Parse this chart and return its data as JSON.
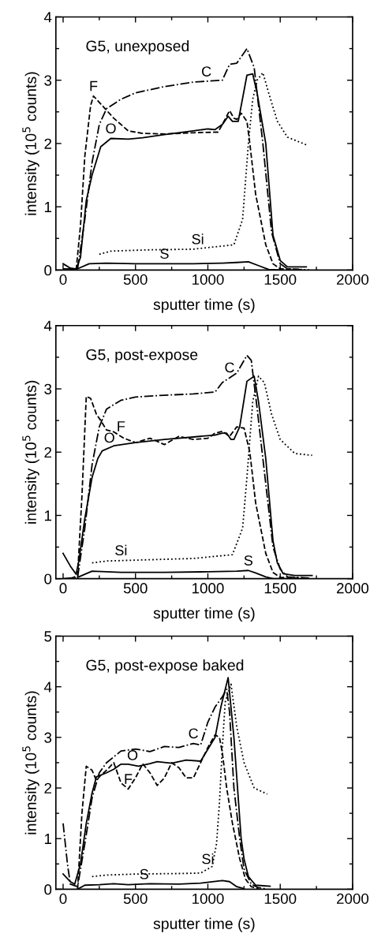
{
  "chart_data": [
    {
      "type": "line",
      "title": "G5, unexposed",
      "xlabel": "sputter time (s)",
      "ylabel": "intensity (10$^{5}$ counts)",
      "xlim": [
        -50,
        2000
      ],
      "ylim": [
        0,
        4
      ],
      "xticks": [
        0,
        {
          "value": 250,
          "label": null
        },
        500,
        {
          "value": 750,
          "label": null
        },
        1000,
        {
          "value": 1250,
          "label": null
        },
        1500,
        {
          "value": 1750,
          "label": null
        },
        2000
      ],
      "yticks": [
        0,
        {
          "value": 0.5,
          "label": null
        },
        1,
        {
          "value": 1.5,
          "label": null
        },
        2,
        {
          "value": 2.5,
          "label": null
        },
        3,
        {
          "value": 3.5,
          "label": null
        },
        4
      ],
      "grid": false,
      "legend": false,
      "marker": "none",
      "series": [
        {
          "color": "#000000",
          "line_style": "dashdot",
          "x": [
            0,
            100,
            150,
            200,
            250,
            300,
            400,
            500,
            700,
            900,
            1100,
            1150,
            1200,
            1270,
            1320,
            1380,
            1440,
            1500,
            1550,
            1700
          ],
          "values": [
            0.02,
            0.02,
            0.8,
            1.7,
            2.3,
            2.55,
            2.7,
            2.8,
            2.9,
            2.97,
            3.0,
            3.25,
            3.27,
            3.5,
            3.2,
            2.0,
            0.6,
            0.1,
            0.02,
            0.0
          ]
        },
        {
          "color": "#000000",
          "line_style": "solid",
          "x": [
            0,
            50,
            90,
            120,
            160,
            200,
            260,
            330,
            450,
            550,
            700,
            900,
            1000,
            1050,
            1100,
            1140,
            1170,
            1210,
            1270,
            1310,
            1340,
            1400,
            1450,
            1500,
            1550,
            1680
          ],
          "values": [
            0.1,
            0.03,
            0.02,
            0.2,
            1.1,
            1.5,
            1.95,
            2.08,
            2.07,
            2.09,
            2.14,
            2.2,
            2.23,
            2.22,
            2.3,
            2.43,
            2.35,
            2.35,
            3.08,
            3.1,
            2.8,
            2.0,
            0.55,
            0.15,
            0.05,
            0.05
          ]
        },
        {
          "color": "#000000",
          "line_style": "dashed",
          "x": [
            90,
            120,
            150,
            190,
            210,
            270,
            350,
            450,
            550,
            700,
            900,
            1070,
            1100,
            1150,
            1180,
            1200,
            1230,
            1270,
            1290,
            1330,
            1400,
            1450,
            1500,
            1650
          ],
          "values": [
            0.0,
            0.7,
            1.8,
            2.6,
            2.75,
            2.6,
            2.4,
            2.2,
            2.16,
            2.15,
            2.17,
            2.18,
            2.3,
            2.52,
            2.4,
            2.38,
            2.48,
            2.35,
            2.0,
            1.2,
            0.4,
            0.1,
            0.02,
            0.01
          ]
        },
        {
          "color": "#000000",
          "line_style": "dotted",
          "x": [
            250,
            330,
            600,
            900,
            1180,
            1240,
            1280,
            1310,
            1340,
            1380,
            1420,
            1480,
            1550,
            1690
          ],
          "values": [
            0.25,
            0.3,
            0.32,
            0.33,
            0.4,
            0.8,
            2.0,
            2.7,
            3.0,
            3.12,
            2.8,
            2.35,
            2.1,
            1.97
          ]
        },
        {
          "color": "#000000",
          "line_style": "solid",
          "x": [
            50,
            100,
            180,
            300,
            500,
            900,
            1100,
            1200,
            1280,
            1350,
            1420,
            1500
          ],
          "values": [
            0.02,
            0.02,
            0.1,
            0.11,
            0.1,
            0.1,
            0.11,
            0.12,
            0.13,
            0.07,
            0.01,
            0.0
          ]
        }
      ],
      "annotations": [
        {
          "text": "C",
          "x": 990,
          "y": 2.98
        },
        {
          "text": "F",
          "x": 210,
          "y": 2.75
        },
        {
          "text": "O",
          "x": 330,
          "y": 2.08
        },
        {
          "text": "S",
          "x": 700,
          "y": 0.1
        },
        {
          "text": "Si",
          "x": 930,
          "y": 0.33
        }
      ]
    },
    {
      "type": "line",
      "title": "G5, post-expose",
      "xlabel": "sputter time (s)",
      "ylabel": "intensity (10$^{5}$ counts)",
      "xlim": [
        -50,
        2000
      ],
      "ylim": [
        0,
        4
      ],
      "xticks": [
        0,
        {
          "value": 250,
          "label": null
        },
        500,
        {
          "value": 750,
          "label": null
        },
        1000,
        {
          "value": 1250,
          "label": null
        },
        1500,
        {
          "value": 1750,
          "label": null
        },
        2000
      ],
      "yticks": [
        0,
        {
          "value": 0.5,
          "label": null
        },
        1,
        {
          "value": 1.5,
          "label": null
        },
        2,
        {
          "value": 2.5,
          "label": null
        },
        3,
        {
          "value": 3.5,
          "label": null
        },
        4
      ],
      "grid": false,
      "legend": false,
      "marker": "none",
      "series": [
        {
          "color": "#000000",
          "line_style": "dashdot",
          "x": [
            0,
            100,
            150,
            200,
            250,
            300,
            400,
            500,
            700,
            900,
            1050,
            1100,
            1200,
            1270,
            1300,
            1340,
            1400,
            1450,
            1500,
            1550,
            1700
          ],
          "values": [
            0.0,
            0.02,
            0.8,
            1.8,
            2.4,
            2.68,
            2.82,
            2.87,
            2.9,
            2.92,
            2.95,
            3.1,
            3.25,
            3.53,
            3.45,
            2.7,
            1.5,
            0.5,
            0.15,
            0.03,
            0.01
          ]
        },
        {
          "color": "#000000",
          "line_style": "solid",
          "x": [
            0,
            50,
            90,
            110,
            150,
            200,
            240,
            270,
            350,
            500,
            700,
            900,
            1050,
            1100,
            1130,
            1160,
            1180,
            1220,
            1270,
            1320,
            1350,
            1400,
            1450,
            1480,
            1520,
            1600,
            1720
          ],
          "values": [
            0.4,
            0.2,
            0.07,
            0.3,
            0.95,
            1.6,
            1.9,
            2.02,
            2.1,
            2.15,
            2.2,
            2.24,
            2.27,
            2.3,
            2.3,
            2.2,
            2.2,
            2.4,
            3.12,
            3.2,
            2.8,
            1.9,
            0.6,
            0.25,
            0.08,
            0.05,
            0.05
          ]
        },
        {
          "color": "#000000",
          "line_style": "dashed",
          "x": [
            50,
            100,
            130,
            160,
            190,
            230,
            260,
            300,
            350,
            420,
            500,
            600,
            700,
            800,
            900,
            1000,
            1050,
            1100,
            1150,
            1200,
            1250,
            1290,
            1330,
            1400,
            1450,
            1500,
            1650
          ],
          "values": [
            0.0,
            0.05,
            1.3,
            2.88,
            2.85,
            2.6,
            2.5,
            2.35,
            2.32,
            2.22,
            2.15,
            2.22,
            2.12,
            2.25,
            2.2,
            2.22,
            2.3,
            2.33,
            2.25,
            2.4,
            2.38,
            2.0,
            1.2,
            0.4,
            0.1,
            0.02,
            0.01
          ]
        },
        {
          "color": "#000000",
          "line_style": "dotted",
          "x": [
            200,
            300,
            600,
            900,
            1170,
            1240,
            1270,
            1310,
            1350,
            1390,
            1440,
            1500,
            1600,
            1720
          ],
          "values": [
            0.25,
            0.28,
            0.3,
            0.32,
            0.38,
            0.8,
            1.6,
            2.8,
            3.2,
            3.1,
            2.6,
            2.2,
            1.98,
            1.95
          ]
        },
        {
          "color": "#000000",
          "line_style": "solid",
          "x": [
            100,
            130,
            200,
            400,
            700,
            1000,
            1200,
            1280,
            1330,
            1400,
            1450,
            1600
          ],
          "values": [
            0.02,
            0.05,
            0.12,
            0.1,
            0.1,
            0.11,
            0.12,
            0.13,
            0.09,
            0.03,
            0.0,
            0.0
          ]
        }
      ],
      "annotations": [
        {
          "text": "C",
          "x": 1150,
          "y": 3.18
        },
        {
          "text": "F",
          "x": 400,
          "y": 2.25
        },
        {
          "text": "O",
          "x": 320,
          "y": 2.07
        },
        {
          "text": "Si",
          "x": 400,
          "y": 0.29
        },
        {
          "text": "S",
          "x": 1280,
          "y": 0.13
        }
      ]
    },
    {
      "type": "line",
      "title": "G5, post-expose baked",
      "xlabel": "sputter time (s)",
      "ylabel": "intensity (10$^{5}$ counts)",
      "xlim": [
        -50,
        2000
      ],
      "ylim": [
        0,
        5
      ],
      "xticks": [
        0,
        {
          "value": 250,
          "label": null
        },
        500,
        {
          "value": 750,
          "label": null
        },
        1000,
        {
          "value": 1250,
          "label": null
        },
        1500,
        {
          "value": 1750,
          "label": null
        },
        2000
      ],
      "yticks": [
        0,
        {
          "value": 0.5,
          "label": null
        },
        1,
        {
          "value": 1.5,
          "label": null
        },
        2,
        {
          "value": 2.5,
          "label": null
        },
        3,
        {
          "value": 3.5,
          "label": null
        },
        4,
        {
          "value": 4.5,
          "label": null
        },
        5
      ],
      "grid": false,
      "legend": false,
      "marker": "none",
      "series": [
        {
          "color": "#000000",
          "line_style": "dashdot",
          "x": [
            0,
            30,
            50,
            100,
            150,
            200,
            250,
            300,
            400,
            500,
            600,
            700,
            800,
            900,
            950,
            1000,
            1050,
            1100,
            1130,
            1150,
            1180,
            1220,
            1250,
            1300,
            1350,
            1400
          ],
          "values": [
            1.3,
            0.5,
            0.1,
            0.05,
            0.9,
            1.8,
            2.3,
            2.5,
            2.73,
            2.77,
            2.72,
            2.82,
            2.8,
            2.88,
            2.85,
            3.3,
            3.6,
            3.8,
            3.95,
            3.5,
            2.0,
            1.0,
            0.4,
            0.1,
            0.03,
            0.01
          ]
        },
        {
          "color": "#000000",
          "line_style": "solid",
          "x": [
            0,
            50,
            80,
            120,
            160,
            200,
            230,
            300,
            350,
            400,
            450,
            520,
            600,
            650,
            750,
            850,
            950,
            1050,
            1090,
            1140,
            1180,
            1230,
            1250,
            1280,
            1330,
            1430
          ],
          "values": [
            0.3,
            0.15,
            0.1,
            0.5,
            1.3,
            1.9,
            2.22,
            2.3,
            2.37,
            2.47,
            2.47,
            2.43,
            2.48,
            2.52,
            2.49,
            2.55,
            2.53,
            3.0,
            3.6,
            4.18,
            3.0,
            1.0,
            0.6,
            0.25,
            0.08,
            0.06
          ]
        },
        {
          "color": "#000000",
          "line_style": "dashed",
          "x": [
            100,
            130,
            160,
            200,
            230,
            260,
            300,
            350,
            400,
            450,
            500,
            550,
            600,
            650,
            700,
            750,
            800,
            850,
            900,
            950,
            1000,
            1050,
            1080,
            1100,
            1130,
            1170,
            1220,
            1260,
            1300,
            1350
          ],
          "values": [
            0.0,
            1.5,
            2.43,
            2.35,
            2.15,
            2.25,
            2.35,
            2.5,
            2.1,
            1.98,
            2.2,
            2.48,
            2.3,
            2.05,
            2.2,
            2.5,
            2.4,
            2.2,
            2.2,
            2.5,
            2.8,
            3.05,
            3.0,
            2.7,
            2.0,
            1.3,
            0.6,
            0.2,
            0.05,
            0.01
          ]
        },
        {
          "color": "#000000",
          "line_style": "dotted",
          "x": [
            200,
            300,
            500,
            800,
            950,
            1030,
            1060,
            1080,
            1100,
            1120,
            1160,
            1200,
            1250,
            1320,
            1410
          ],
          "values": [
            0.25,
            0.28,
            0.3,
            0.31,
            0.32,
            0.45,
            0.9,
            1.7,
            2.8,
            3.7,
            4.05,
            3.2,
            2.5,
            2.0,
            1.88
          ]
        },
        {
          "color": "#000000",
          "line_style": "solid",
          "x": [
            100,
            150,
            250,
            350,
            450,
            600,
            800,
            950,
            1100,
            1150,
            1200,
            1250
          ],
          "values": [
            0.0,
            0.08,
            0.09,
            0.11,
            0.09,
            0.11,
            0.1,
            0.12,
            0.17,
            0.15,
            0.05,
            0.01
          ]
        }
      ],
      "annotations": [
        {
          "text": "O",
          "x": 480,
          "y": 2.45
        },
        {
          "text": "C",
          "x": 900,
          "y": 2.88
        },
        {
          "text": "F",
          "x": 450,
          "y": 1.98
        },
        {
          "text": "S",
          "x": 560,
          "y": 0.1
        },
        {
          "text": "Si",
          "x": 1000,
          "y": 0.4
        }
      ]
    }
  ]
}
